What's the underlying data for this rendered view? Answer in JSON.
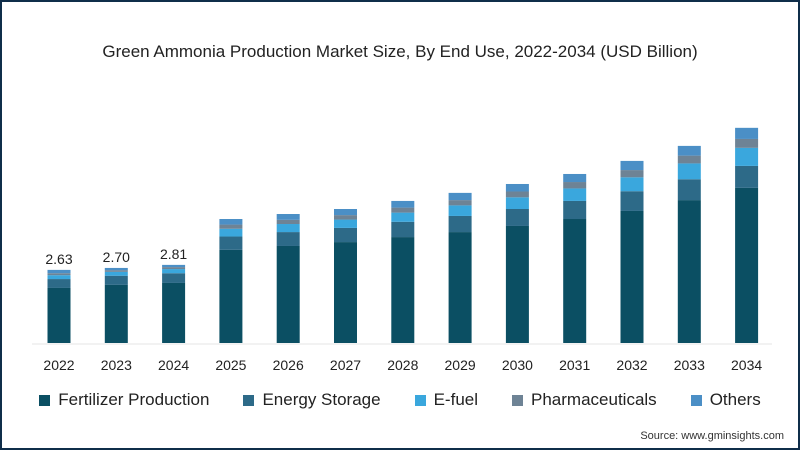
{
  "chart_data": {
    "type": "bar",
    "stacked": true,
    "title": "Green Ammonia Production Market Size, By End Use, 2022-2034 (USD Billion)",
    "xlabel": "",
    "ylabel": "",
    "categories": [
      "2022",
      "2023",
      "2024",
      "2025",
      "2026",
      "2027",
      "2028",
      "2029",
      "2030",
      "2031",
      "2032",
      "2033",
      "2034"
    ],
    "series": [
      {
        "name": "Fertilizer Production",
        "color": "#0b4f63",
        "values": [
          1.98,
          2.09,
          2.16,
          3.35,
          3.49,
          3.63,
          3.81,
          3.99,
          4.21,
          4.46,
          4.75,
          5.14,
          5.58
        ]
      },
      {
        "name": "Energy Storage",
        "color": "#2d6a88",
        "values": [
          0.32,
          0.33,
          0.35,
          0.48,
          0.5,
          0.51,
          0.55,
          0.58,
          0.61,
          0.65,
          0.71,
          0.75,
          0.79
        ]
      },
      {
        "name": "E-fuel",
        "color": "#3aa7dd",
        "values": [
          0.14,
          0.14,
          0.15,
          0.28,
          0.29,
          0.3,
          0.33,
          0.38,
          0.42,
          0.45,
          0.5,
          0.57,
          0.65
        ]
      },
      {
        "name": "Pharmaceuticals",
        "color": "#6e8395",
        "values": [
          0.07,
          0.06,
          0.07,
          0.15,
          0.15,
          0.16,
          0.18,
          0.19,
          0.21,
          0.23,
          0.26,
          0.28,
          0.32
        ]
      },
      {
        "name": "Others",
        "color": "#4b8fc6",
        "values": [
          0.12,
          0.08,
          0.08,
          0.2,
          0.21,
          0.22,
          0.24,
          0.26,
          0.27,
          0.29,
          0.33,
          0.35,
          0.4
        ]
      }
    ],
    "data_labels": {
      "2022": "2.63",
      "2023": "2.70",
      "2024": "2.81"
    },
    "ylim": [
      0,
      8
    ],
    "grid": false,
    "legend": "bottom"
  },
  "source": "Source: www.gminsights.com"
}
